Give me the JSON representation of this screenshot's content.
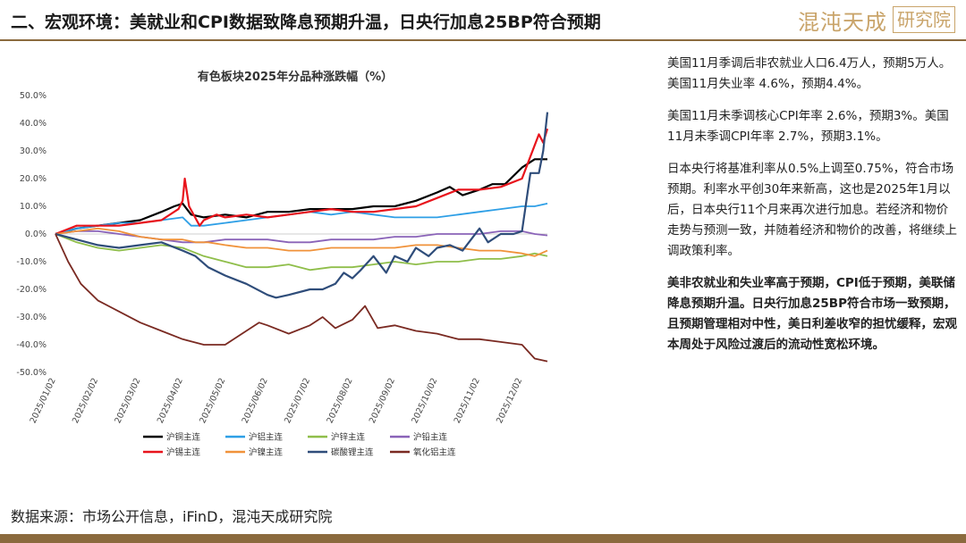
{
  "header": {
    "title": "二、宏观环境：美就业和CPI数据致降息预期升温，日央行加息25BP符合预期",
    "logo_main": "混沌天成",
    "logo_box": "研究院"
  },
  "chart_data": {
    "type": "line",
    "title": "有色板块2025年分品种涨跌幅（%）",
    "x_labels": [
      "2025/01/02",
      "2025/02/02",
      "2025/03/02",
      "2025/04/02",
      "2025/05/02",
      "2025/06/02",
      "2025/07/02",
      "2025/08/02",
      "2025/09/02",
      "2025/10/02",
      "2025/11/02",
      "2025/12/02"
    ],
    "x_positions": [
      0,
      1,
      2,
      3,
      4,
      5,
      6,
      7,
      8,
      9,
      10,
      11
    ],
    "y_ticks": [
      50,
      40,
      30,
      20,
      10,
      0,
      -10,
      -20,
      -30,
      -40,
      -50
    ],
    "y_tick_labels": [
      "50.0%",
      "40.0%",
      "30.0%",
      "20.0%",
      "10.0%",
      "0.0%",
      "-10.0%",
      "-20.0%",
      "-30.0%",
      "-40.0%",
      "-50.0%"
    ],
    "ylim": [
      -50,
      50
    ],
    "xlim": [
      0,
      11.6
    ],
    "legend_position": "bottom",
    "series": [
      {
        "name": "沪铜主连",
        "color": "#000000",
        "x": [
          0,
          0.5,
          1,
          1.5,
          2,
          2.5,
          2.8,
          3,
          3.2,
          3.5,
          4,
          4.5,
          5,
          5.5,
          6,
          6.5,
          7,
          7.5,
          8,
          8.5,
          9,
          9.3,
          9.6,
          10,
          10.3,
          10.6,
          11,
          11.3,
          11.6
        ],
        "values": [
          0,
          2,
          3,
          4,
          5,
          8,
          10,
          11,
          7,
          6,
          7,
          6,
          8,
          8,
          9,
          9,
          9,
          10,
          10,
          12,
          15,
          17,
          14,
          16,
          18,
          18,
          24,
          27,
          27
        ]
      },
      {
        "name": "沪铝主连",
        "color": "#2e9fe6",
        "x": [
          0,
          0.5,
          1,
          1.5,
          2,
          2.5,
          3,
          3.2,
          3.5,
          4,
          4.5,
          5,
          5.5,
          6,
          6.5,
          7,
          7.5,
          8,
          8.5,
          9,
          9.5,
          10,
          10.5,
          11,
          11.3,
          11.6
        ],
        "values": [
          0,
          2,
          3,
          4,
          4,
          5,
          6,
          3,
          3,
          4,
          5,
          6,
          7,
          8,
          7,
          8,
          7,
          6,
          6,
          6,
          7,
          8,
          9,
          10,
          10,
          11
        ]
      },
      {
        "name": "沪锌主连",
        "color": "#8fbe4a",
        "x": [
          0,
          0.5,
          1,
          1.5,
          2,
          2.5,
          3,
          3.5,
          4,
          4.5,
          5,
          5.5,
          6,
          6.5,
          7,
          7.5,
          8,
          8.5,
          9,
          9.5,
          10,
          10.5,
          11,
          11.3,
          11.6
        ],
        "values": [
          0,
          -3,
          -5,
          -6,
          -5,
          -4,
          -5,
          -8,
          -10,
          -12,
          -12,
          -11,
          -13,
          -12,
          -12,
          -11,
          -10,
          -11,
          -10,
          -10,
          -9,
          -9,
          -8,
          -7,
          -8
        ]
      },
      {
        "name": "沪铅主连",
        "color": "#8a63b8",
        "x": [
          0,
          0.5,
          1,
          1.5,
          2,
          2.5,
          3,
          3.5,
          4,
          4.5,
          5,
          5.5,
          6,
          6.5,
          7,
          7.5,
          8,
          8.5,
          9,
          9.5,
          10,
          10.5,
          11,
          11.3,
          11.6
        ],
        "values": [
          0,
          1,
          1,
          0,
          -1,
          -2,
          -3,
          -3,
          -2,
          -2,
          -2,
          -3,
          -3,
          -2,
          -2,
          -2,
          -1,
          -1,
          0,
          0,
          0,
          1,
          1,
          0,
          -0.5
        ]
      },
      {
        "name": "沪锡主连",
        "color": "#e8141c",
        "x": [
          0,
          0.5,
          1,
          1.5,
          2,
          2.5,
          2.9,
          3,
          3.05,
          3.15,
          3.4,
          3.5,
          3.8,
          4,
          4.5,
          5,
          5.5,
          6,
          6.5,
          7,
          7.5,
          8,
          8.5,
          9,
          9.5,
          10,
          10.5,
          11,
          11.2,
          11.4,
          11.5,
          11.6
        ],
        "values": [
          0,
          3,
          3,
          3,
          4,
          5,
          9,
          12,
          20,
          10,
          3,
          5,
          7,
          6,
          7,
          6,
          7,
          8,
          9,
          8,
          8,
          9,
          10,
          13,
          16,
          16,
          17,
          20,
          28,
          36,
          33,
          38
        ]
      },
      {
        "name": "沪镍主连",
        "color": "#f0923a",
        "x": [
          0,
          0.5,
          1,
          1.5,
          2,
          2.5,
          3,
          3.3,
          3.6,
          4,
          4.5,
          5,
          5.5,
          6,
          6.5,
          7,
          7.5,
          8,
          8.5,
          9,
          9.5,
          10,
          10.5,
          11,
          11.3,
          11.6
        ],
        "values": [
          0,
          1,
          2,
          1,
          -1,
          -2,
          -2,
          -3,
          -3,
          -4,
          -5,
          -5,
          -6,
          -6,
          -5,
          -5,
          -5,
          -5,
          -4,
          -4,
          -5,
          -6,
          -6,
          -7,
          -8,
          -6
        ]
      },
      {
        "name": "碳酸锂主连",
        "color": "#2f4d7a",
        "x": [
          0,
          0.5,
          1,
          1.5,
          2,
          2.5,
          3,
          3.3,
          3.6,
          4,
          4.5,
          5,
          5.2,
          5.5,
          6,
          6.3,
          6.6,
          6.8,
          7,
          7.2,
          7.5,
          7.8,
          8,
          8.3,
          8.5,
          8.8,
          9,
          9.3,
          9.6,
          10,
          10.2,
          10.5,
          10.8,
          11,
          11.2,
          11.4,
          11.5,
          11.6
        ],
        "values": [
          0,
          -2,
          -4,
          -5,
          -4,
          -3,
          -6,
          -8,
          -12,
          -15,
          -18,
          -22,
          -23,
          -22,
          -20,
          -20,
          -18,
          -14,
          -16,
          -13,
          -8,
          -14,
          -8,
          -10,
          -5,
          -8,
          -5,
          -4,
          -6,
          2,
          -3,
          0,
          0,
          1,
          22,
          22,
          30,
          44
        ]
      },
      {
        "name": "氧化铝主连",
        "color": "#7a2a22",
        "x": [
          0,
          0.3,
          0.6,
          1,
          1.5,
          2,
          2.5,
          3,
          3.5,
          4,
          4.5,
          4.8,
          5,
          5.5,
          6,
          6.3,
          6.6,
          7,
          7.3,
          7.6,
          8,
          8.5,
          9,
          9.5,
          10,
          10.5,
          11,
          11.3,
          11.6
        ],
        "values": [
          0,
          -10,
          -18,
          -24,
          -28,
          -32,
          -35,
          -38,
          -40,
          -40,
          -35,
          -32,
          -33,
          -36,
          -33,
          -30,
          -34,
          -31,
          -26,
          -34,
          -33,
          -35,
          -36,
          -38,
          -38,
          -39,
          -40,
          -45,
          -46
        ]
      }
    ]
  },
  "right_text": {
    "p1": "美国11月季调后非农就业人口6.4万人，预期5万人。美国11月失业率 4.6%，预期4.4%。",
    "p2": "美国11月未季调核心CPI年率 2.6%，预期3%。美国11月未季调CPI年率 2.7%，预期3.1%。",
    "p3": "日本央行将基准利率从0.5%上调至0.75%，符合市场预期。利率水平创30年来新高，这也是2025年1月以后，日本央行11个月来再次进行加息。若经济和物价走势与预测一致，并随着经济和物价的改善，将继续上调政策利率。",
    "p4": "美非农就业和失业率高于预期，CPI低于预期，美联储降息预期升温。日央行加息25BP符合市场一致预期，且预期管理相对中性，美日利差收窄的担忧缓释，宏观本周处于风险过渡后的流动性宽松环境。"
  },
  "source": "数据来源：市场公开信息，iFinD，混沌天成研究院"
}
